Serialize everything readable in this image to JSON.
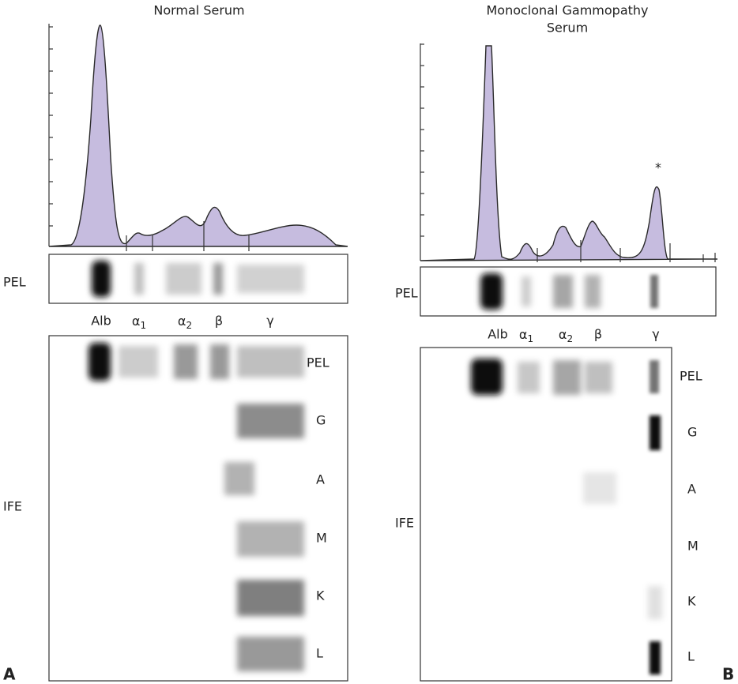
{
  "panels": [
    {
      "letter": "A",
      "title": [
        "Normal Serum"
      ],
      "strip_label": "PEL",
      "fractions": [
        {
          "text": "Alb"
        },
        {
          "text": "α",
          "sub": "1"
        },
        {
          "text": "α",
          "sub": "2"
        },
        {
          "text": "β"
        },
        {
          "text": "γ"
        }
      ],
      "ife_label": "IFE",
      "ife_rows": [
        "PEL",
        "G",
        "A",
        "M",
        "K",
        "L"
      ]
    },
    {
      "letter": "B",
      "title": [
        "Monoclonal Gammopathy",
        "Serum"
      ],
      "annotation": "*",
      "strip_label": "PEL",
      "fractions": [
        {
          "text": "Alb"
        },
        {
          "text": "α",
          "sub": "1"
        },
        {
          "text": "α",
          "sub": "2"
        },
        {
          "text": "β"
        },
        {
          "text": "γ"
        }
      ],
      "ife_label": "IFE",
      "ife_rows": [
        "PEL",
        "G",
        "A",
        "M",
        "K",
        "L"
      ]
    }
  ]
}
